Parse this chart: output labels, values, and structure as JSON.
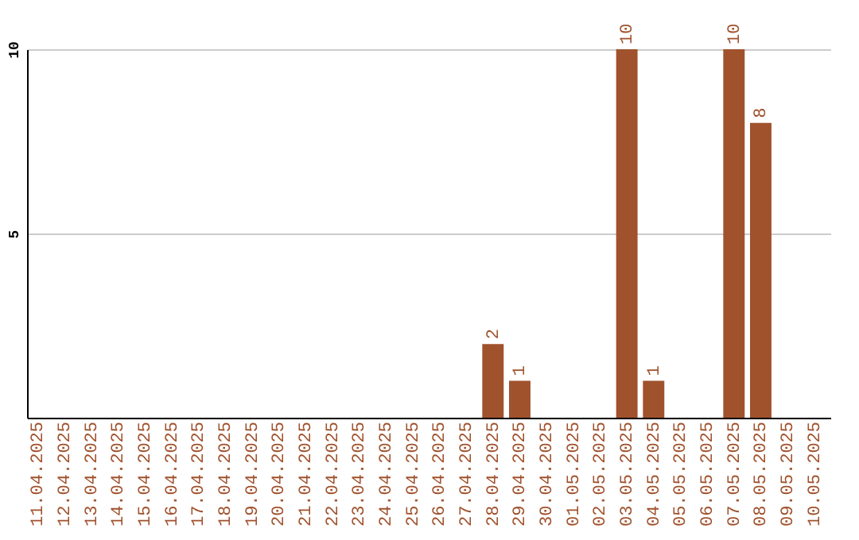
{
  "chart_data": {
    "type": "bar",
    "categories": [
      "11.04.2025",
      "12.04.2025",
      "13.04.2025",
      "14.04.2025",
      "15.04.2025",
      "16.04.2025",
      "17.04.2025",
      "18.04.2025",
      "19.04.2025",
      "20.04.2025",
      "21.04.2025",
      "22.04.2025",
      "23.04.2025",
      "24.04.2025",
      "25.04.2025",
      "26.04.2025",
      "27.04.2025",
      "28.04.2025",
      "29.04.2025",
      "30.04.2025",
      "01.05.2025",
      "02.05.2025",
      "03.05.2025",
      "04.05.2025",
      "05.05.2025",
      "06.05.2025",
      "07.05.2025",
      "08.05.2025",
      "09.05.2025",
      "10.05.2025"
    ],
    "values": [
      0,
      0,
      0,
      0,
      0,
      0,
      0,
      0,
      0,
      0,
      0,
      0,
      0,
      0,
      0,
      0,
      0,
      2,
      1,
      0,
      0,
      0,
      10,
      1,
      0,
      0,
      10,
      8,
      0,
      0
    ],
    "value_labels": [
      null,
      null,
      null,
      null,
      null,
      null,
      null,
      null,
      null,
      null,
      null,
      null,
      null,
      null,
      null,
      null,
      null,
      "2",
      "1",
      null,
      null,
      null,
      "10",
      "1",
      null,
      null,
      "10",
      "8",
      null,
      null
    ],
    "color": "#a0522d",
    "ylim": [
      0,
      10
    ],
    "yticks": [
      5,
      10
    ],
    "grid": "y"
  }
}
